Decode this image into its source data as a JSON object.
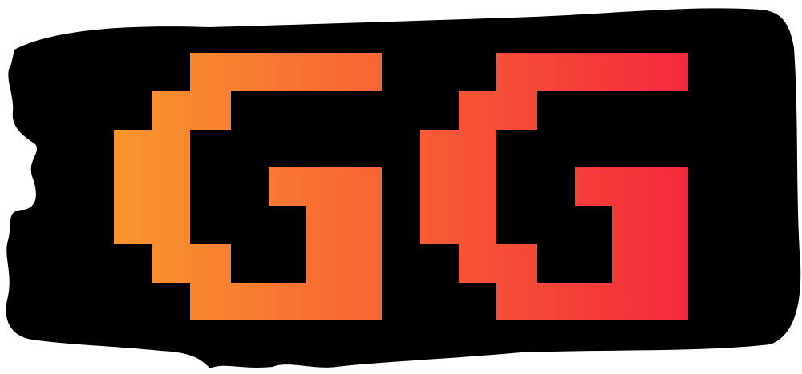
{
  "logo": {
    "text": "GG",
    "background_color": "#000000",
    "page_color": "#ffffff",
    "gradient": {
      "start_color": "#f9962d",
      "end_color": "#f42a3c"
    }
  }
}
